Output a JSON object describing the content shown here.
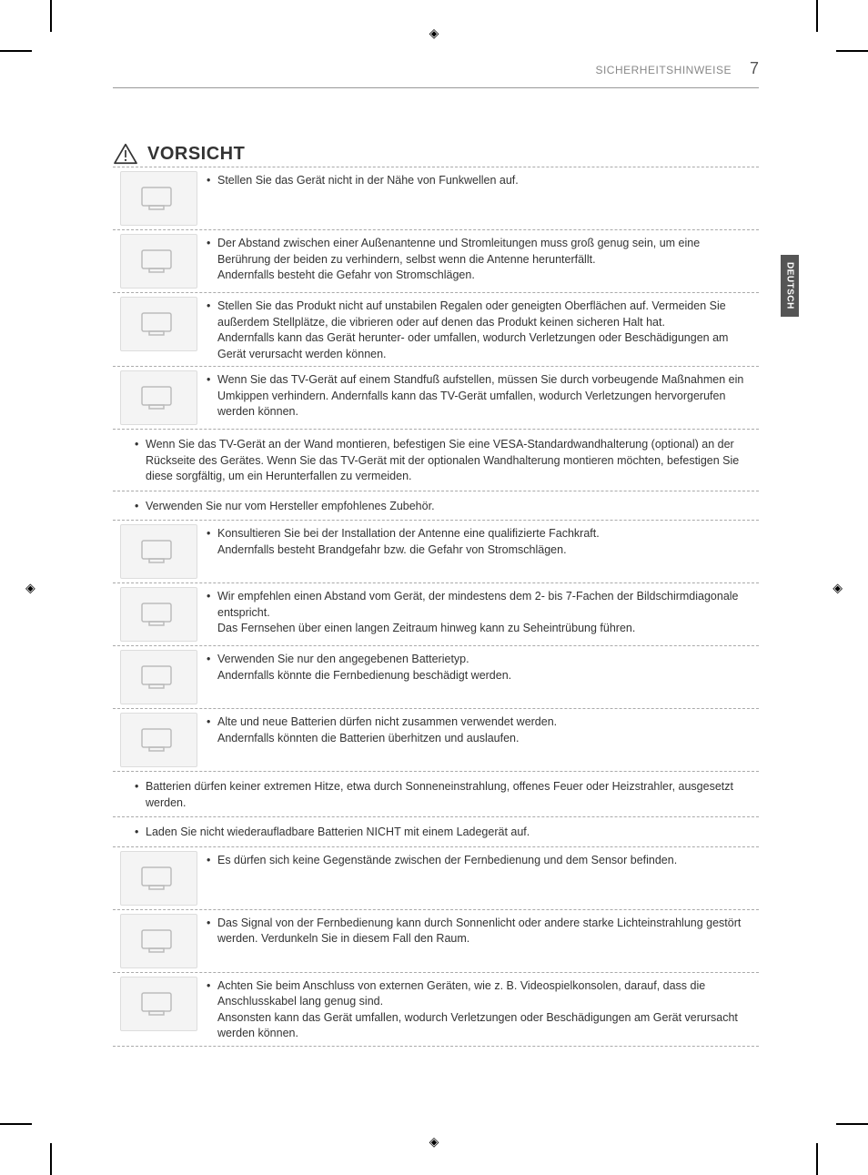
{
  "header": {
    "section": "SICHERHEITSHINWEISE",
    "page_number": "7"
  },
  "side_tab": "DEUTSCH",
  "title": "VORSICHT",
  "items": [
    {
      "has_icon": true,
      "text": "Stellen Sie das Gerät nicht in der Nähe von Funkwellen auf."
    },
    {
      "has_icon": true,
      "text": "Der Abstand zwischen einer Außenantenne und Stromleitungen muss groß genug sein, um eine Berührung der beiden zu verhindern, selbst wenn die Antenne herunterfällt.\nAndernfalls besteht die Gefahr von Stromschlägen."
    },
    {
      "has_icon": true,
      "text": "Stellen Sie das Produkt nicht auf unstabilen Regalen oder geneigten Oberflächen auf. Vermeiden Sie außerdem Stellplätze, die vibrieren oder auf denen das Produkt keinen sicheren Halt hat.\nAndernfalls kann das Gerät herunter- oder umfallen, wodurch Verletzungen oder Beschädigungen am Gerät verursacht werden können."
    },
    {
      "has_icon": true,
      "text": "Wenn Sie das TV-Gerät auf einem Standfuß aufstellen, müssen Sie durch vorbeugende Maßnahmen ein Umkippen verhindern. Andernfalls kann das TV-Gerät umfallen, wodurch Verletzungen hervorgerufen werden können."
    },
    {
      "has_icon": false,
      "text": "Wenn Sie das TV-Gerät an der Wand montieren, befestigen Sie eine VESA-Standardwandhalterung (optional) an der Rückseite des Gerätes. Wenn Sie das TV-Gerät mit der optionalen Wandhalterung montieren möchten, befestigen Sie diese sorgfältig, um ein Herunterfallen zu vermeiden."
    },
    {
      "has_icon": false,
      "text": "Verwenden Sie nur vom Hersteller empfohlenes Zubehör."
    },
    {
      "has_icon": true,
      "text": "Konsultieren Sie bei der Installation der Antenne eine qualifizierte Fachkraft.\nAndernfalls besteht Brandgefahr bzw. die Gefahr von Stromschlägen."
    },
    {
      "has_icon": true,
      "text": "Wir empfehlen einen Abstand vom Gerät, der mindestens dem 2- bis 7-Fachen der Bildschirmdiagonale entspricht.\nDas Fernsehen über einen langen Zeitraum hinweg kann zu Seheintrübung führen."
    },
    {
      "has_icon": true,
      "text": "Verwenden Sie nur den angegebenen Batterietyp.\nAndernfalls könnte die Fernbedienung beschädigt werden."
    },
    {
      "has_icon": true,
      "text": "Alte und neue Batterien dürfen nicht zusammen verwendet werden.\nAndernfalls könnten die Batterien überhitzen und auslaufen."
    },
    {
      "has_icon": false,
      "text": "Batterien dürfen keiner extremen Hitze, etwa durch Sonneneinstrahlung, offenes Feuer oder Heizstrahler, ausgesetzt werden."
    },
    {
      "has_icon": false,
      "text": "Laden Sie nicht wiederaufladbare Batterien NICHT mit einem Ladegerät auf."
    },
    {
      "has_icon": true,
      "text": "Es dürfen sich keine Gegenstände zwischen der Fernbedienung und dem Sensor befinden."
    },
    {
      "has_icon": true,
      "text": "Das Signal von der Fernbedienung kann durch Sonnenlicht oder andere starke Lichteinstrahlung gestört werden. Verdunkeln Sie in diesem Fall den Raum."
    },
    {
      "has_icon": true,
      "text": "Achten Sie beim Anschluss von externen Geräten, wie z. B. Videospielkonsolen, darauf, dass die Anschlusskabel lang genug sind.\nAnsonsten kann das Gerät umfallen, wodurch Verletzungen oder Beschädigungen am Gerät verursacht werden können."
    }
  ]
}
